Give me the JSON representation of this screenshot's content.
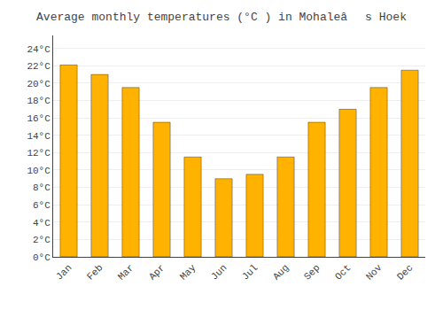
{
  "chart_data": {
    "type": "bar",
    "title": "Average monthly temperatures (°C ) in Mohaleâs Hoek",
    "categories": [
      "Jan",
      "Feb",
      "Mar",
      "Apr",
      "May",
      "Jun",
      "Jul",
      "Aug",
      "Sep",
      "Oct",
      "Nov",
      "Dec"
    ],
    "values": [
      22.1,
      21.0,
      19.5,
      15.5,
      11.5,
      9.0,
      9.5,
      11.5,
      15.5,
      17.0,
      19.5,
      21.5
    ],
    "color": "#FFB300",
    "ylim": [
      0,
      25.5
    ],
    "yticks": [
      {
        "value": 0,
        "label": "0°C"
      },
      {
        "value": 2,
        "label": "2°C"
      },
      {
        "value": 4,
        "label": "4°C"
      },
      {
        "value": 6,
        "label": "6°C"
      },
      {
        "value": 8,
        "label": "8°C"
      },
      {
        "value": 10,
        "label": "10°C"
      },
      {
        "value": 12,
        "label": "12°C"
      },
      {
        "value": 14,
        "label": "14°C"
      },
      {
        "value": 16,
        "label": "16°C"
      },
      {
        "value": 18,
        "label": "18°C"
      },
      {
        "value": 20,
        "label": "20°C"
      },
      {
        "value": 22,
        "label": "22°C"
      },
      {
        "value": 24,
        "label": "24°C"
      }
    ],
    "grid": true
  }
}
